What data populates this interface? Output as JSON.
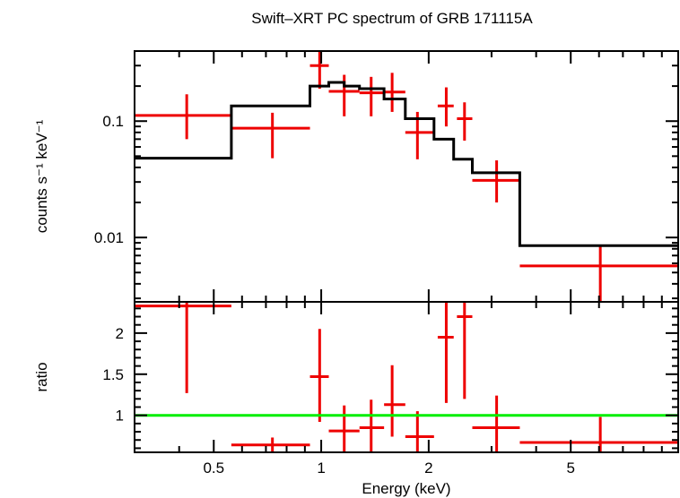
{
  "chart_data": {
    "type": "scatter",
    "title": "Swift–XRT PC spectrum of GRB 171115A",
    "xlabel": "Energy (keV)",
    "x_scale": "log",
    "xlim": [
      0.3,
      10
    ],
    "x_ticks": [
      0.5,
      1,
      2,
      5
    ],
    "x_tick_labels": [
      "0.5",
      "1",
      "2",
      "5"
    ],
    "panels": [
      {
        "ylabel": "counts s⁻¹ keV⁻¹",
        "y_scale": "log",
        "ylim": [
          0.0028,
          0.4
        ],
        "y_ticks": [
          0.01,
          0.1
        ],
        "y_tick_labels": [
          "0.01",
          "0.1"
        ],
        "series": [
          {
            "type": "errorbar",
            "color": "#ee0000",
            "points": [
              {
                "x": 0.42,
                "xlo": 0.3,
                "xhi": 0.56,
                "y": 0.112,
                "ylo": 0.07,
                "yhi": 0.17
              },
              {
                "x": 0.73,
                "xlo": 0.56,
                "xhi": 0.93,
                "y": 0.087,
                "ylo": 0.048,
                "yhi": 0.118
              },
              {
                "x": 0.99,
                "xlo": 0.93,
                "xhi": 1.05,
                "y": 0.3,
                "ylo": 0.19,
                "yhi": 0.4
              },
              {
                "x": 1.16,
                "xlo": 1.05,
                "xhi": 1.28,
                "y": 0.18,
                "ylo": 0.11,
                "yhi": 0.25
              },
              {
                "x": 1.38,
                "xlo": 1.28,
                "xhi": 1.5,
                "y": 0.175,
                "ylo": 0.11,
                "yhi": 0.24
              },
              {
                "x": 1.58,
                "xlo": 1.5,
                "xhi": 1.72,
                "y": 0.178,
                "ylo": 0.12,
                "yhi": 0.26
              },
              {
                "x": 1.86,
                "xlo": 1.72,
                "xhi": 2.07,
                "y": 0.08,
                "ylo": 0.047,
                "yhi": 0.12
              },
              {
                "x": 2.24,
                "xlo": 2.12,
                "xhi": 2.35,
                "y": 0.135,
                "ylo": 0.09,
                "yhi": 0.195
              },
              {
                "x": 2.52,
                "xlo": 2.4,
                "xhi": 2.65,
                "y": 0.105,
                "ylo": 0.068,
                "yhi": 0.145
              },
              {
                "x": 3.1,
                "xlo": 2.65,
                "xhi": 3.6,
                "y": 0.031,
                "ylo": 0.02,
                "yhi": 0.046
              },
              {
                "x": 6.05,
                "xlo": 3.6,
                "xhi": 10.0,
                "y": 0.0057,
                "ylo": 0.0028,
                "yhi": 0.0086
              }
            ]
          },
          {
            "type": "step",
            "color": "#000000",
            "edges": [
              0.3,
              0.56,
              0.93,
              1.05,
              1.16,
              1.28,
              1.5,
              1.72,
              2.07,
              2.35,
              2.65,
              3.6,
              10.0
            ],
            "values": [
              0.048,
              0.135,
              0.2,
              0.215,
              0.2,
              0.19,
              0.155,
              0.105,
              0.07,
              0.047,
              0.036,
              0.0085
            ]
          }
        ]
      },
      {
        "ylabel": "ratio",
        "y_scale": "linear",
        "ylim": [
          0.55,
          2.38
        ],
        "y_ticks": [
          1,
          1.5,
          2
        ],
        "y_tick_labels": [
          "1",
          "1.5",
          "2"
        ],
        "series": [
          {
            "type": "errorbar",
            "color": "#ee0000",
            "points": [
              {
                "x": 0.42,
                "xlo": 0.3,
                "xhi": 0.56,
                "y": 2.33,
                "ylo": 1.27,
                "yhi": 2.38
              },
              {
                "x": 0.73,
                "xlo": 0.56,
                "xhi": 0.93,
                "y": 0.64,
                "ylo": 0.55,
                "yhi": 0.73
              },
              {
                "x": 0.99,
                "xlo": 0.93,
                "xhi": 1.05,
                "y": 1.47,
                "ylo": 0.92,
                "yhi": 2.05
              },
              {
                "x": 1.16,
                "xlo": 1.05,
                "xhi": 1.28,
                "y": 0.81,
                "ylo": 0.55,
                "yhi": 1.12
              },
              {
                "x": 1.38,
                "xlo": 1.28,
                "xhi": 1.5,
                "y": 0.85,
                "ylo": 0.55,
                "yhi": 1.19
              },
              {
                "x": 1.58,
                "xlo": 1.5,
                "xhi": 1.72,
                "y": 1.13,
                "ylo": 0.74,
                "yhi": 1.61
              },
              {
                "x": 1.86,
                "xlo": 1.72,
                "xhi": 2.07,
                "y": 0.74,
                "ylo": 0.55,
                "yhi": 1.05
              },
              {
                "x": 2.24,
                "xlo": 2.12,
                "xhi": 2.35,
                "y": 1.95,
                "ylo": 1.15,
                "yhi": 2.38
              },
              {
                "x": 2.52,
                "xlo": 2.4,
                "xhi": 2.65,
                "y": 2.2,
                "ylo": 1.2,
                "yhi": 2.38
              },
              {
                "x": 3.1,
                "xlo": 2.65,
                "xhi": 3.6,
                "y": 0.85,
                "ylo": 0.55,
                "yhi": 1.24
              },
              {
                "x": 6.05,
                "xlo": 3.6,
                "xhi": 10.0,
                "y": 0.67,
                "ylo": 0.55,
                "yhi": 0.98
              }
            ]
          },
          {
            "type": "hline",
            "color": "#00ee00",
            "y": 1.0
          }
        ]
      }
    ],
    "grid": false,
    "legend": "none"
  }
}
